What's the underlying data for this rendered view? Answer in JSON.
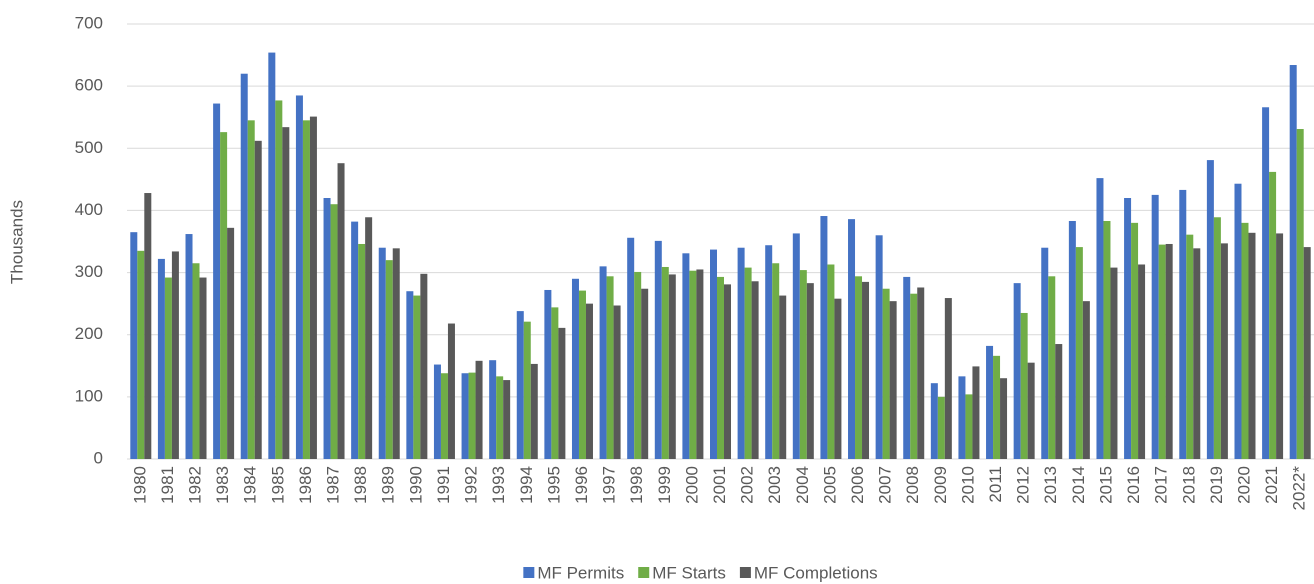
{
  "chart_data": {
    "type": "bar",
    "y_label": "Thousands",
    "categories": [
      "1980",
      "1981",
      "1982",
      "1983",
      "1984",
      "1985",
      "1986",
      "1987",
      "1988",
      "1989",
      "1990",
      "1991",
      "1992",
      "1993",
      "1994",
      "1995",
      "1996",
      "1997",
      "1998",
      "1999",
      "2000",
      "2001",
      "2002",
      "2003",
      "2004",
      "2005",
      "2006",
      "2007",
      "2008",
      "2009",
      "2010",
      "2011",
      "2012",
      "2013",
      "2014",
      "2015",
      "2016",
      "2017",
      "2018",
      "2019",
      "2020",
      "2021",
      "2022*"
    ],
    "series": [
      {
        "name": "MF Permits",
        "color": "#4472c4",
        "values": [
          365,
          322,
          362,
          572,
          620,
          654,
          585,
          420,
          382,
          340,
          270,
          152,
          138,
          159,
          238,
          272,
          290,
          310,
          356,
          351,
          331,
          337,
          340,
          344,
          363,
          391,
          386,
          360,
          293,
          122,
          133,
          182,
          283,
          340,
          383,
          452,
          420,
          425,
          433,
          481,
          443,
          566,
          634
        ]
      },
      {
        "name": "MF Starts",
        "color": "#70ad47",
        "values": [
          335,
          292,
          315,
          526,
          545,
          577,
          545,
          410,
          346,
          320,
          263,
          138,
          139,
          133,
          221,
          244,
          271,
          294,
          301,
          309,
          303,
          293,
          308,
          315,
          304,
          313,
          294,
          274,
          266,
          100,
          104,
          166,
          235,
          294,
          341,
          383,
          380,
          345,
          361,
          389,
          380,
          462,
          531
        ]
      },
      {
        "name": "MF Completions",
        "color": "#595959",
        "values": [
          428,
          334,
          292,
          372,
          512,
          534,
          551,
          476,
          389,
          339,
          298,
          218,
          158,
          127,
          153,
          211,
          250,
          247,
          274,
          297,
          305,
          281,
          286,
          263,
          283,
          258,
          285,
          254,
          276,
          259,
          149,
          130,
          155,
          185,
          254,
          308,
          313,
          346,
          339,
          347,
          364,
          363,
          341
        ]
      }
    ],
    "ylim": [
      0,
      700
    ],
    "yticks": [
      0,
      100,
      200,
      300,
      400,
      500,
      600,
      700
    ],
    "grid": true,
    "legend": "bottom"
  }
}
